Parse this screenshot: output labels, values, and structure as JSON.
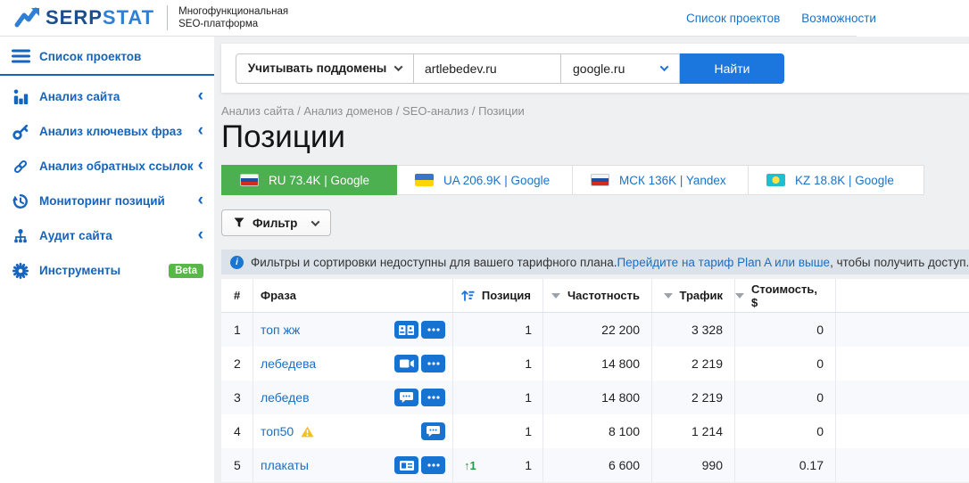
{
  "header": {
    "logo_serp": "SERP",
    "logo_stat": "STAT",
    "tagline_line1": "Многофункциональная",
    "tagline_line2": "SEO-платформа",
    "links": [
      {
        "label": "Список проектов"
      },
      {
        "label": "Возможности"
      }
    ]
  },
  "sidebar": {
    "projects_label": "Список проектов",
    "items": [
      {
        "id": "site-analysis",
        "label": "Анализ сайта",
        "icon": "site-analysis-icon",
        "chevron": true,
        "badge": null
      },
      {
        "id": "keyword-analysis",
        "label": "Анализ ключевых фраз",
        "icon": "keywords-icon",
        "chevron": true,
        "badge": null
      },
      {
        "id": "backlink-analysis",
        "label": "Анализ обратных ссылок",
        "icon": "backlinks-icon",
        "chevron": true,
        "badge": null
      },
      {
        "id": "rank-monitoring",
        "label": "Мониторинг позиций",
        "icon": "rank-monitoring-icon",
        "chevron": true,
        "badge": null
      },
      {
        "id": "site-audit",
        "label": "Аудит сайта",
        "icon": "site-audit-icon",
        "chevron": true,
        "badge": null
      },
      {
        "id": "tools",
        "label": "Инструменты",
        "icon": "tools-icon",
        "chevron": false,
        "badge": "Beta"
      }
    ]
  },
  "search": {
    "subdomain_toggle": "Учитывать поддомены",
    "query_value": "artlebedev.ru",
    "engine_value": "google.ru",
    "submit_label": "Найти"
  },
  "breadcrumb": [
    "Анализ сайта",
    "Анализ доменов",
    "SEO-анализ",
    "Позиции"
  ],
  "page_title": "Позиции",
  "tabs": [
    {
      "label": "RU 73.4K | Google",
      "flag": "ru",
      "active": true
    },
    {
      "label": "UA 206.9K | Google",
      "flag": "ua",
      "active": false
    },
    {
      "label": "МСК 136K | Yandex",
      "flag": "ru",
      "active": false
    },
    {
      "label": "KZ 18.8K | Google",
      "flag": "kz",
      "active": false
    }
  ],
  "filter_button": "Фильтр",
  "banner": {
    "text_before": "Фильтры и сортировки недоступны для вашего тарифного плана. ",
    "link_label": "Перейдите на тариф Plan A или выше",
    "text_after": ", чтобы получить доступ."
  },
  "table": {
    "columns": [
      {
        "label": "#",
        "sort": null
      },
      {
        "label": "Фраза",
        "sort": null
      },
      {
        "label": "Позиция",
        "sort": "active-asc"
      },
      {
        "label": "Частотность",
        "sort": "caret-down"
      },
      {
        "label": "Трафик",
        "sort": "caret-down"
      },
      {
        "label": "Стоимость, $",
        "sort": "caret-down"
      },
      {
        "label": "",
        "sort": null
      }
    ],
    "rows": [
      {
        "num": "1",
        "phrase": "топ жж",
        "warning": false,
        "badges": [
          "images",
          "dots"
        ],
        "change": "",
        "position": "1",
        "volume": "22 200",
        "traffic": "3 328",
        "cost": "0"
      },
      {
        "num": "2",
        "phrase": "лебедева",
        "warning": false,
        "badges": [
          "video",
          "dots"
        ],
        "change": "",
        "position": "1",
        "volume": "14 800",
        "traffic": "2 219",
        "cost": "0"
      },
      {
        "num": "3",
        "phrase": "лебедев",
        "warning": false,
        "badges": [
          "chat",
          "dots"
        ],
        "change": "",
        "position": "1",
        "volume": "14 800",
        "traffic": "2 219",
        "cost": "0"
      },
      {
        "num": "4",
        "phrase": "топ50",
        "warning": true,
        "badges": [
          "chat"
        ],
        "change": "",
        "position": "1",
        "volume": "8 100",
        "traffic": "1 214",
        "cost": "0"
      },
      {
        "num": "5",
        "phrase": "плакаты",
        "warning": false,
        "badges": [
          "card",
          "dots"
        ],
        "change": "1",
        "position": "1",
        "volume": "6 600",
        "traffic": "990",
        "cost": "0.17"
      }
    ]
  },
  "colors": {
    "brand_navy": "#1b4d8f",
    "brand_blue": "#2f80d4",
    "accent_blue": "#1b76dd",
    "sidebar_blue": "#1464bc",
    "link_blue": "#1a6fc4",
    "active_tab_green": "#4caf50",
    "beta_green": "#57b847",
    "change_up_green": "#1f9e44",
    "warning_yellow": "#f2c021",
    "badge_blue": "#1673d2",
    "banner_bg": "#dbe2ea"
  }
}
